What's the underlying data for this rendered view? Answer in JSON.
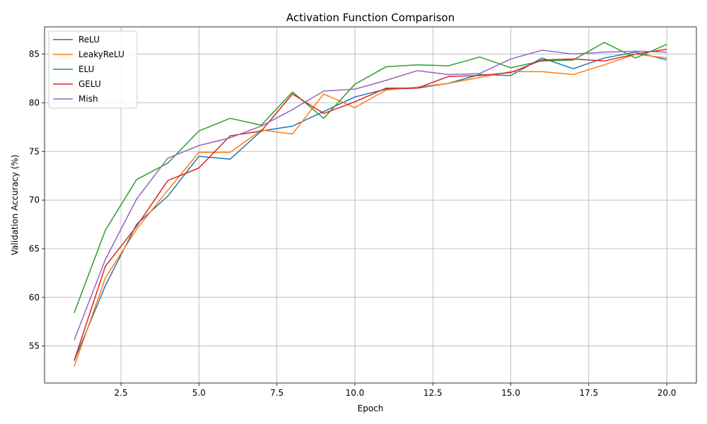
{
  "chart_data": {
    "type": "line",
    "title": "Activation Function Comparison",
    "xlabel": "Epoch",
    "ylabel": "Validation Accuracy (%)",
    "xlim": [
      0.05,
      20.95
    ],
    "ylim": [
      51.2,
      87.8
    ],
    "xticks": [
      2.5,
      5.0,
      7.5,
      10.0,
      12.5,
      15.0,
      17.5,
      20.0
    ],
    "xtick_labels": [
      "2.5",
      "5.0",
      "7.5",
      "10.0",
      "12.5",
      "15.0",
      "17.5",
      "20.0"
    ],
    "yticks": [
      55,
      60,
      65,
      70,
      75,
      80,
      85
    ],
    "ytick_labels": [
      "55",
      "60",
      "65",
      "70",
      "75",
      "80",
      "85"
    ],
    "grid": true,
    "legend_position": "top-left",
    "x": [
      1,
      2,
      3,
      4,
      5,
      6,
      7,
      8,
      9,
      10,
      11,
      12,
      13,
      14,
      15,
      16,
      17,
      18,
      19,
      20
    ],
    "series": [
      {
        "name": "ReLU",
        "color": "#1f77b4",
        "values": [
          53.5,
          61.2,
          67.5,
          70.4,
          74.5,
          74.2,
          77.1,
          77.6,
          79.1,
          80.6,
          81.4,
          81.5,
          82.0,
          82.9,
          82.8,
          84.6,
          83.5,
          84.6,
          85.2,
          84.4
        ]
      },
      {
        "name": "LeakyReLU",
        "color": "#ff7f0e",
        "values": [
          52.9,
          62.0,
          67.0,
          71.0,
          74.9,
          74.9,
          77.2,
          76.8,
          80.9,
          79.5,
          81.3,
          81.6,
          82.0,
          82.6,
          83.2,
          83.2,
          82.9,
          83.9,
          85.0,
          84.6
        ]
      },
      {
        "name": "ELU",
        "color": "#2ca02c",
        "values": [
          58.4,
          66.9,
          72.1,
          73.8,
          77.1,
          78.4,
          77.7,
          81.1,
          78.4,
          81.9,
          83.7,
          83.9,
          83.8,
          84.7,
          83.6,
          84.3,
          84.4,
          86.2,
          84.6,
          86.0
        ]
      },
      {
        "name": "GELU",
        "color": "#d62728",
        "values": [
          53.5,
          63.2,
          67.3,
          72.0,
          73.3,
          76.6,
          77.1,
          80.9,
          78.9,
          80.1,
          81.5,
          81.5,
          82.7,
          82.8,
          83.1,
          84.4,
          84.5,
          84.3,
          85.0,
          85.5
        ]
      },
      {
        "name": "Mish",
        "color": "#9467bd",
        "values": [
          55.6,
          63.9,
          70.1,
          74.3,
          75.6,
          76.4,
          77.6,
          79.3,
          81.2,
          81.4,
          82.3,
          83.3,
          82.9,
          83.0,
          84.5,
          85.4,
          85.0,
          85.2,
          85.3,
          85.2
        ]
      }
    ]
  }
}
